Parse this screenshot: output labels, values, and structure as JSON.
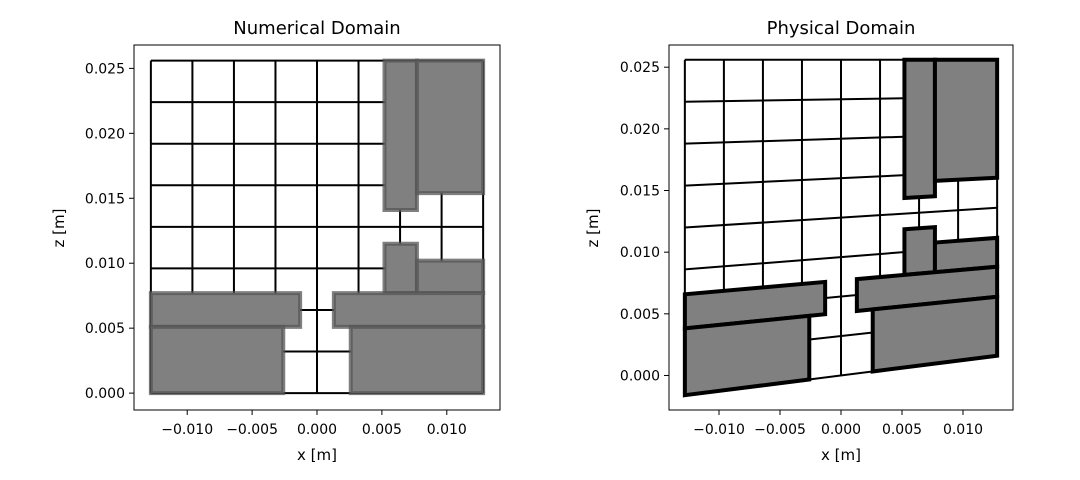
{
  "colors": {
    "fill": "#808080",
    "edge": "#000000",
    "background": "#ffffff"
  },
  "chart_data": [
    {
      "type": "mesh",
      "title": "Numerical Domain",
      "xlabel": "x [m]",
      "ylabel": "z [m]",
      "xlim": [
        -0.0141,
        0.0141
      ],
      "ylim": [
        -0.0013,
        0.0268
      ],
      "xticks": [
        -0.01,
        -0.005,
        0.0,
        0.005,
        0.01
      ],
      "xtick_labels": [
        "−0.010",
        "−0.005",
        "0.000",
        "0.005",
        "0.010"
      ],
      "yticks": [
        0.0,
        0.005,
        0.01,
        0.015,
        0.02,
        0.025
      ],
      "ytick_labels": [
        "0.000",
        "0.005",
        "0.010",
        "0.015",
        "0.020",
        "0.025"
      ],
      "grid_x": [
        -0.0128,
        -0.0096,
        -0.0064,
        -0.0032,
        0.0,
        0.0032,
        0.0064,
        0.0096,
        0.0128
      ],
      "grid_z": [
        0.0,
        0.0032,
        0.0064,
        0.0096,
        0.0128,
        0.016,
        0.0192,
        0.0224,
        0.0256
      ],
      "regions": [
        {
          "x": [
            0.0052,
            0.0077
          ],
          "z": [
            0.0141,
            0.0256
          ]
        },
        {
          "x": [
            0.0077,
            0.0128
          ],
          "z": [
            0.0154,
            0.0256
          ]
        },
        {
          "x": [
            0.0052,
            0.0077
          ],
          "z": [
            0.0077,
            0.0115
          ]
        },
        {
          "x": [
            0.0077,
            0.0128
          ],
          "z": [
            0.0077,
            0.0102
          ]
        },
        {
          "x": [
            -0.0128,
            -0.0013
          ],
          "z": [
            0.0051,
            0.0077
          ]
        },
        {
          "x": [
            -0.0128,
            -0.0026
          ],
          "z": [
            0.0,
            0.0051
          ]
        },
        {
          "x": [
            0.0013,
            0.0128
          ],
          "z": [
            0.0051,
            0.0077
          ]
        },
        {
          "x": [
            0.0026,
            0.0128
          ],
          "z": [
            0.0,
            0.0051
          ]
        }
      ]
    },
    {
      "type": "mesh",
      "title": "Physical Domain",
      "xlabel": "x [m]",
      "ylabel": "z [m]",
      "xlim": [
        -0.0141,
        0.0141
      ],
      "ylim": [
        -0.0028,
        0.0268
      ],
      "xticks": [
        -0.01,
        -0.005,
        0.0,
        0.005,
        0.01
      ],
      "xtick_labels": [
        "−0.010",
        "−0.005",
        "0.000",
        "0.005",
        "0.010"
      ],
      "yticks": [
        0.0,
        0.005,
        0.01,
        0.015,
        0.02,
        0.025
      ],
      "ytick_labels": [
        "0.000",
        "0.005",
        "0.010",
        "0.015",
        "0.020",
        "0.025"
      ],
      "grid_x": [
        -0.0128,
        -0.0096,
        -0.0064,
        -0.0032,
        0.0,
        0.0032,
        0.0064,
        0.0096,
        0.0128
      ],
      "grid_z": [
        0.0,
        0.0032,
        0.0064,
        0.0096,
        0.0128,
        0.016,
        0.0192,
        0.0224,
        0.0256
      ],
      "z_bottom_at_left": -0.0016,
      "z_bottom_at_right": 0.0016,
      "regions": [
        {
          "x": [
            0.0052,
            0.0077
          ],
          "z": [
            0.0141,
            0.0256
          ]
        },
        {
          "x": [
            0.0077,
            0.0128
          ],
          "z": [
            0.0154,
            0.0256
          ]
        },
        {
          "x": [
            0.0052,
            0.0077
          ],
          "z": [
            0.0077,
            0.0115
          ]
        },
        {
          "x": [
            0.0077,
            0.0128
          ],
          "z": [
            0.0077,
            0.0102
          ]
        },
        {
          "x": [
            -0.0128,
            -0.0013
          ],
          "z": [
            0.0051,
            0.0077
          ]
        },
        {
          "x": [
            -0.0128,
            -0.0026
          ],
          "z": [
            0.0,
            0.0051
          ]
        },
        {
          "x": [
            0.0013,
            0.0128
          ],
          "z": [
            0.0051,
            0.0077
          ]
        },
        {
          "x": [
            0.0026,
            0.0128
          ],
          "z": [
            0.0,
            0.0051
          ]
        }
      ]
    }
  ]
}
